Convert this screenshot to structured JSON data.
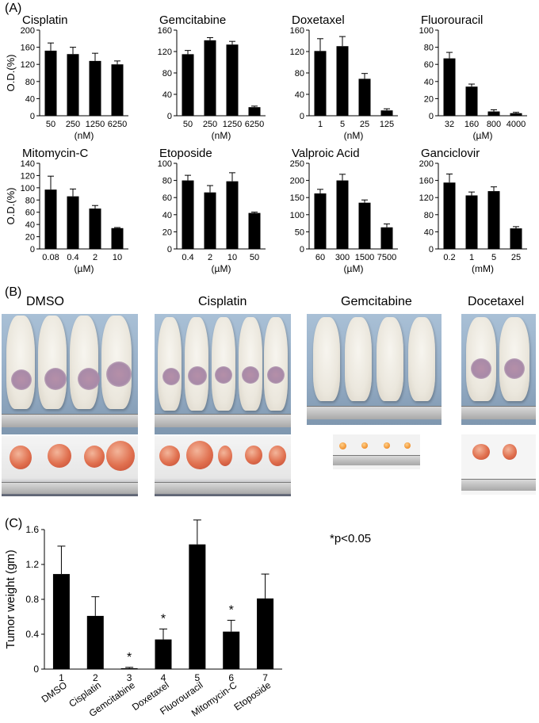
{
  "panel_labels": {
    "a": "(A)",
    "b": "(B)",
    "c": "(C)"
  },
  "chart_data": [
    {
      "type": "bar",
      "title": "Cisplatin",
      "ylabel": "O.D.(%)",
      "xunit": "(nM)",
      "categories": [
        "50",
        "250",
        "1250",
        "6250"
      ],
      "values": [
        152,
        144,
        128,
        120
      ],
      "errors": [
        18,
        16,
        18,
        8
      ],
      "ylim": [
        0,
        200
      ],
      "yticks": [
        "0",
        "40",
        "80",
        "120",
        "160",
        "200"
      ]
    },
    {
      "type": "bar",
      "title": "Gemcitabine",
      "ylabel": "",
      "xunit": "(nM)",
      "categories": [
        "50",
        "250",
        "1250",
        "6250"
      ],
      "values": [
        115,
        141,
        133,
        16
      ],
      "errors": [
        7,
        5,
        6,
        2
      ],
      "ylim": [
        0,
        160
      ],
      "yticks": [
        "0",
        "40",
        "80",
        "120",
        "160"
      ]
    },
    {
      "type": "bar",
      "title": "Doxetaxel",
      "ylabel": "",
      "xunit": "(nM)",
      "categories": [
        "1",
        "5",
        "25",
        "125"
      ],
      "values": [
        121,
        130,
        69,
        10
      ],
      "errors": [
        23,
        18,
        10,
        3
      ],
      "ylim": [
        0,
        160
      ],
      "yticks": [
        "0",
        "40",
        "80",
        "120",
        "160"
      ]
    },
    {
      "type": "bar",
      "title": "Fluorouracil",
      "ylabel": "",
      "xunit": "(µM)",
      "categories": [
        "32",
        "160",
        "800",
        "4000"
      ],
      "values": [
        67,
        34,
        5,
        3
      ],
      "errors": [
        7,
        3,
        2,
        1
      ],
      "ylim": [
        0,
        100
      ],
      "yticks": [
        "0",
        "20",
        "40",
        "60",
        "80",
        "100"
      ]
    },
    {
      "type": "bar",
      "title": "Mitomycin-C",
      "ylabel": "O.D.(%)",
      "xunit": "(µM)",
      "categories": [
        "0.08",
        "0.4",
        "2",
        "10"
      ],
      "values": [
        97,
        86,
        66,
        34
      ],
      "errors": [
        22,
        12,
        5,
        1
      ],
      "ylim": [
        0,
        140
      ],
      "yticks": [
        "0",
        "20",
        "40",
        "60",
        "80",
        "100",
        "120",
        "140"
      ]
    },
    {
      "type": "bar",
      "title": "Etoposide",
      "ylabel": "",
      "xunit": "(µM)",
      "categories": [
        "0.4",
        "2",
        "10",
        "50"
      ],
      "values": [
        80,
        66,
        79,
        42
      ],
      "errors": [
        6,
        8,
        10,
        1
      ],
      "ylim": [
        0,
        100
      ],
      "yticks": [
        "0",
        "20",
        "40",
        "60",
        "80",
        "100"
      ]
    },
    {
      "type": "bar",
      "title": "Valproic Acid",
      "ylabel": "",
      "xunit": "(µM)",
      "categories": [
        "60",
        "300",
        "1500",
        "7500"
      ],
      "values": [
        162,
        200,
        135,
        63
      ],
      "errors": [
        12,
        18,
        8,
        10
      ],
      "ylim": [
        0,
        250
      ],
      "yticks": [
        "0",
        "50",
        "100",
        "150",
        "200",
        "250"
      ]
    },
    {
      "type": "bar",
      "title": "Ganciclovir",
      "ylabel": "",
      "xunit": "(mM)",
      "categories": [
        "0.2",
        "1",
        "5",
        "25"
      ],
      "values": [
        155,
        125,
        135,
        48
      ],
      "errors": [
        20,
        8,
        10,
        4
      ],
      "ylim": [
        0,
        200
      ],
      "yticks": [
        "0",
        "40",
        "80",
        "120",
        "160",
        "200"
      ]
    },
    {
      "type": "bar",
      "title": "",
      "ylabel": "Tumor weight (gm)",
      "categories": [
        "DMSO",
        "Cisplatin",
        "Gemcitabine",
        "Doxetaxel",
        "Fluorouracil",
        "Mitomycin-C",
        "Etoposide"
      ],
      "numbers": [
        "1",
        "2",
        "3",
        "4",
        "5",
        "6",
        "7"
      ],
      "values": [
        1.09,
        0.61,
        0.01,
        0.34,
        1.43,
        0.43,
        0.81
      ],
      "errors": [
        0.32,
        0.22,
        0.01,
        0.12,
        0.28,
        0.13,
        0.28
      ],
      "significant": [
        false,
        false,
        true,
        true,
        false,
        true,
        false
      ],
      "ylim": [
        0,
        1.6
      ],
      "yticks": [
        "0",
        "0.4",
        "0.8",
        "1.2",
        "1.6"
      ],
      "annotation": "*p<0.05",
      "marker": "*"
    }
  ],
  "photos": {
    "groups": [
      {
        "label": "DMSO",
        "mice": 4,
        "nodules": 4
      },
      {
        "label": "Cisplatin",
        "mice": 5,
        "nodules": 5
      },
      {
        "label": "Gemcitabine",
        "mice": 4,
        "nodules": 4
      },
      {
        "label": "Docetaxel",
        "mice": 2,
        "nodules": 2
      }
    ]
  }
}
